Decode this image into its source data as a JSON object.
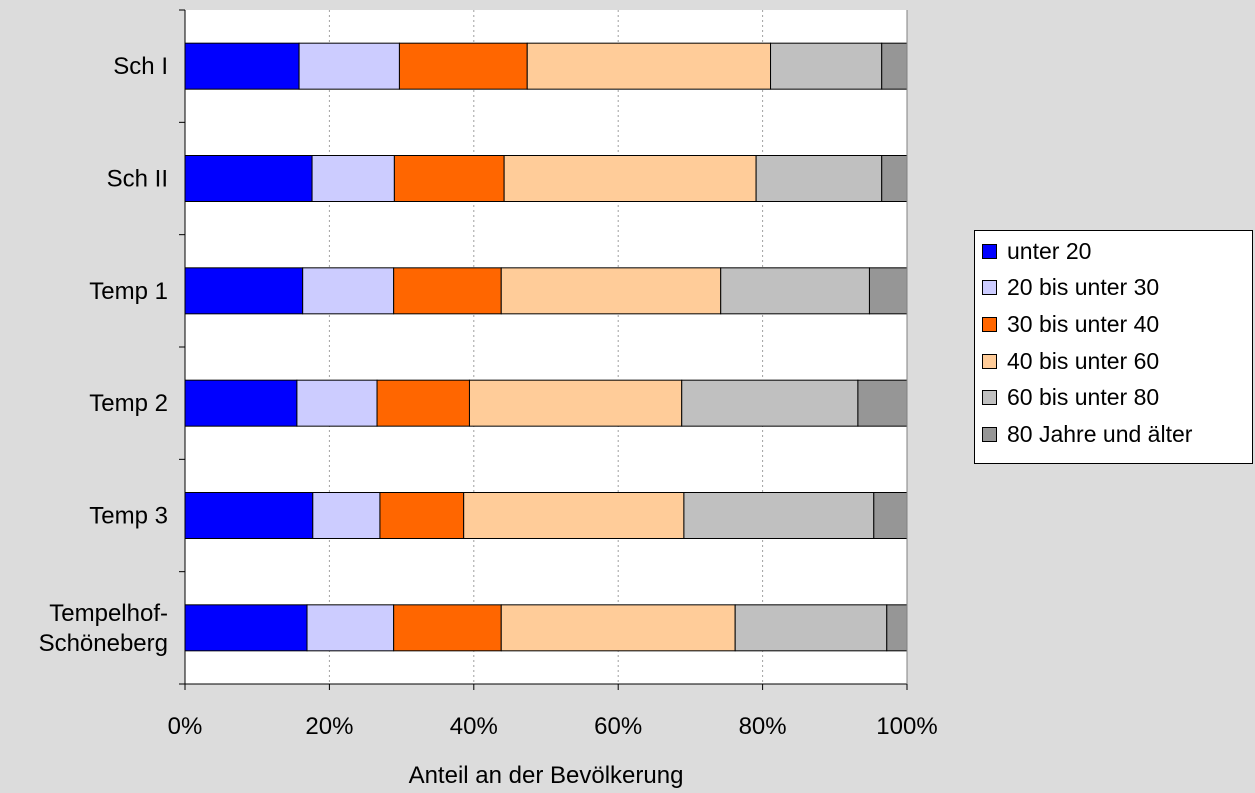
{
  "chart_data": {
    "type": "bar",
    "orientation": "horizontal",
    "stacked": "percent",
    "title": "",
    "xlabel": "Anteil an der Bevölkerung",
    "ylabel": "",
    "xlim": [
      0,
      100
    ],
    "x_ticks": [
      "0%",
      "20%",
      "40%",
      "60%",
      "80%",
      "100%"
    ],
    "grid": "vertical dashed",
    "legend_position": "right",
    "categories": [
      [
        "Sch I"
      ],
      [
        "Sch II"
      ],
      [
        "Temp 1"
      ],
      [
        "Temp 2"
      ],
      [
        "Temp 3"
      ],
      [
        "Tempelhof-",
        "Schöneberg"
      ]
    ],
    "series": [
      {
        "name": "unter 20",
        "color": "#0000ff",
        "values": [
          15.8,
          17.6,
          16.3,
          15.5,
          17.7,
          16.9
        ]
      },
      {
        "name": "20 bis unter 30",
        "color": "#ccccff",
        "values": [
          13.9,
          11.4,
          12.6,
          11.1,
          9.3,
          12.0
        ]
      },
      {
        "name": "30 bis unter 40",
        "color": "#ff6600",
        "values": [
          17.7,
          15.2,
          14.9,
          12.8,
          11.6,
          14.9
        ]
      },
      {
        "name": "40 bis unter 60",
        "color": "#ffcc99",
        "values": [
          33.7,
          34.9,
          30.4,
          29.4,
          30.5,
          32.4
        ]
      },
      {
        "name": "60 bis unter 80",
        "color": "#c0c0c0",
        "values": [
          15.4,
          17.4,
          20.6,
          24.4,
          26.3,
          21.0
        ]
      },
      {
        "name": "80 Jahre und älter",
        "color": "#969696",
        "values": [
          3.5,
          3.5,
          5.2,
          6.8,
          4.6,
          2.8
        ]
      }
    ]
  }
}
